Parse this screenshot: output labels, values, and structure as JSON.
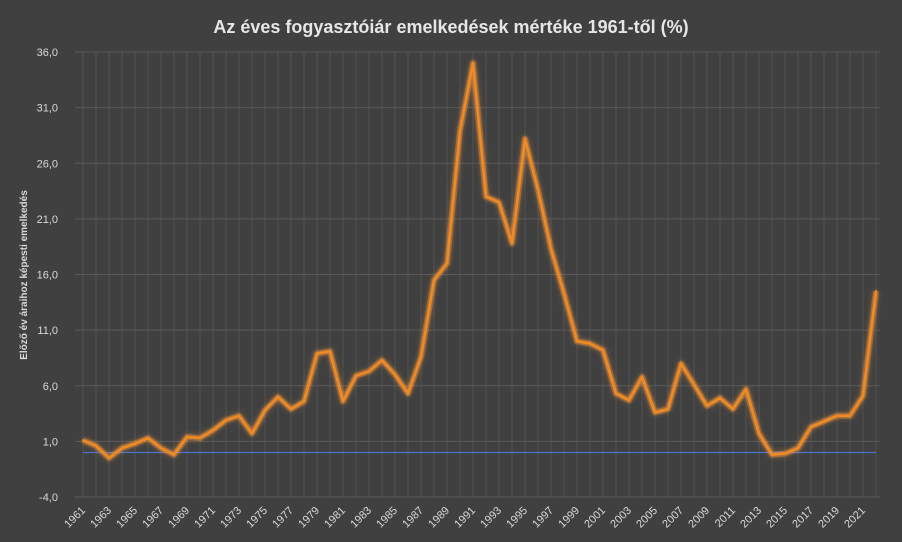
{
  "chart_data": {
    "type": "line",
    "title": "Az éves fogyasztóiár  emelkedések mértéke 1961-től (%)",
    "ylabel": "Előző év áraihoz képesti emelkedés",
    "xlabel": "",
    "ylim": [
      -4,
      36
    ],
    "yticks": [
      "36,0",
      "31,0",
      "26,0",
      "21,0",
      "16,0",
      "11,0",
      "6,0",
      "1,0",
      "-4,0"
    ],
    "ytick_values": [
      36,
      31,
      26,
      21,
      16,
      11,
      6,
      1,
      -4
    ],
    "x_tick_labels": [
      "1961",
      "1963",
      "1965",
      "1967",
      "1969",
      "1971",
      "1973",
      "1975",
      "1977",
      "1979",
      "1981",
      "1983",
      "1985",
      "1987",
      "1989",
      "1991",
      "1993",
      "1995",
      "1997",
      "1999",
      "2001",
      "2003",
      "2005",
      "2007",
      "2009",
      "2011",
      "2013",
      "2015",
      "2017",
      "2019",
      "2021"
    ],
    "x": [
      1961,
      1962,
      1963,
      1964,
      1965,
      1966,
      1967,
      1968,
      1969,
      1970,
      1971,
      1972,
      1973,
      1974,
      1975,
      1976,
      1977,
      1978,
      1979,
      1980,
      1981,
      1982,
      1983,
      1984,
      1985,
      1986,
      1987,
      1988,
      1989,
      1990,
      1991,
      1992,
      1993,
      1994,
      1995,
      1996,
      1997,
      1998,
      1999,
      2000,
      2001,
      2002,
      2003,
      2004,
      2005,
      2006,
      2007,
      2008,
      2009,
      2010,
      2011,
      2012,
      2013,
      2014,
      2015,
      2016,
      2017,
      2018,
      2019,
      2020,
      2021,
      2022
    ],
    "baseline": 0,
    "series": [
      {
        "values": [
          1.1,
          0.6,
          -0.5,
          0.4,
          0.8,
          1.3,
          0.4,
          -0.2,
          1.4,
          1.3,
          2.0,
          2.9,
          3.3,
          1.7,
          3.8,
          5.0,
          3.9,
          4.6,
          8.9,
          9.1,
          4.6,
          6.9,
          7.3,
          8.3,
          7.0,
          5.3,
          8.6,
          15.5,
          17.0,
          28.9,
          35.0,
          23.0,
          22.5,
          18.8,
          28.2,
          23.6,
          18.3,
          14.3,
          10.0,
          9.8,
          9.2,
          5.3,
          4.7,
          6.8,
          3.6,
          3.9,
          8.0,
          6.1,
          4.2,
          4.9,
          3.9,
          5.7,
          1.7,
          -0.2,
          -0.1,
          0.4,
          2.3,
          2.8,
          3.3,
          3.3,
          5.1,
          14.5
        ]
      }
    ],
    "colors": {
      "line": "#f08a24",
      "glow": "#ff9a3c",
      "baseline": "#4a72c4",
      "background": "#404040"
    },
    "grid": true,
    "legend": "none"
  }
}
